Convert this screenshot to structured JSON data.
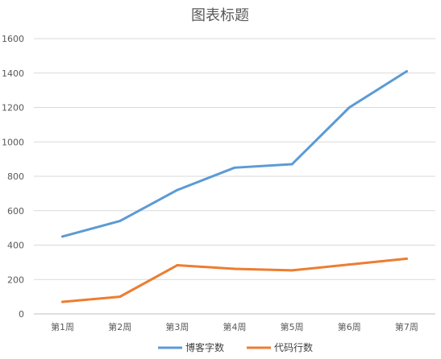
{
  "chart_data": {
    "type": "line",
    "title": "图表标题",
    "categories": [
      "第1周",
      "第2周",
      "第3周",
      "第4周",
      "第5周",
      "第6周",
      "第7周"
    ],
    "series": [
      {
        "name": "博客字数",
        "values": [
          450,
          540,
          720,
          850,
          870,
          1200,
          1410
        ],
        "color": "#5b9bd5"
      },
      {
        "name": "代码行数",
        "values": [
          70,
          100,
          283,
          262,
          253,
          287,
          321
        ],
        "color": "#ed7d31"
      }
    ],
    "ylim": [
      0,
      1600
    ],
    "yticks": [
      0,
      200,
      400,
      600,
      800,
      1000,
      1200,
      1400,
      1600
    ],
    "grid": true,
    "legend": "bottom",
    "gridline_color": "#d9d9d9",
    "axis_color": "#bfbfbf"
  }
}
